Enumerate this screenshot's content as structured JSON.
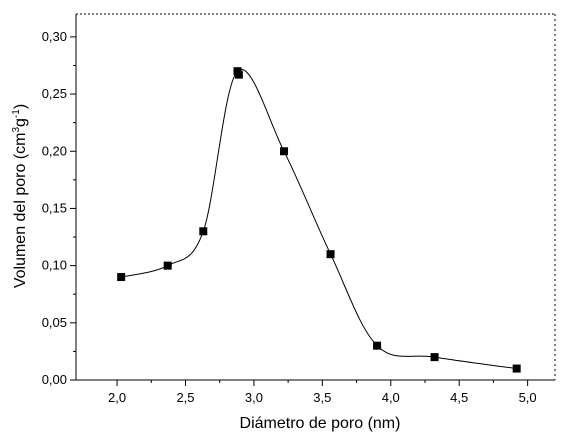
{
  "chart_data": {
    "type": "scatter",
    "title": "",
    "xlabel": "Diámetro de poro (nm)",
    "ylabel": {
      "main": "Volumen del poro (cm",
      "sup1": "3",
      "mid": "g",
      "sup2": "-1",
      "end": ")"
    },
    "xlim": [
      1.7,
      5.2
    ],
    "ylim": [
      0.0,
      0.32
    ],
    "xticks": [
      2.0,
      2.5,
      3.0,
      3.5,
      4.0,
      4.5,
      5.0
    ],
    "xtick_labels": [
      "2,0",
      "2,5",
      "3,0",
      "3,5",
      "4,0",
      "4,5",
      "5,0"
    ],
    "yticks": [
      0.0,
      0.05,
      0.1,
      0.15,
      0.2,
      0.25,
      0.3
    ],
    "ytick_labels": [
      "0,00",
      "0,05",
      "0,10",
      "0,15",
      "0,20",
      "0,25",
      "0,30"
    ],
    "grid": false,
    "legend": "none",
    "series": [
      {
        "marker": "square",
        "color": "#000000",
        "smooth_line": true,
        "points": [
          {
            "x": 2.03,
            "y": 0.09
          },
          {
            "x": 2.37,
            "y": 0.1
          },
          {
            "x": 2.63,
            "y": 0.13
          },
          {
            "x": 2.88,
            "y": 0.27
          },
          {
            "x": 2.89,
            "y": 0.267
          },
          {
            "x": 3.22,
            "y": 0.2
          },
          {
            "x": 3.56,
            "y": 0.11
          },
          {
            "x": 3.9,
            "y": 0.03
          },
          {
            "x": 4.32,
            "y": 0.02
          },
          {
            "x": 4.92,
            "y": 0.01
          }
        ]
      }
    ]
  }
}
